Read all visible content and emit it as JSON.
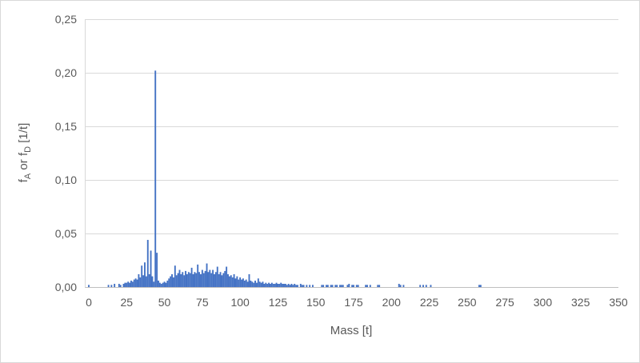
{
  "chart": {
    "x_axis": {
      "label": "Mass [t]",
      "ticks": [
        "0",
        "25",
        "50",
        "75",
        "100",
        "125",
        "150",
        "175",
        "200",
        "225",
        "250",
        "275",
        "300",
        "325",
        "350"
      ]
    },
    "y_axis": {
      "title_parts": [
        "f",
        "A",
        " or f",
        "D",
        " [1/t]"
      ],
      "ticks": [
        "0,25",
        "0,20",
        "0,15",
        "0,10",
        "0,05",
        "0,00"
      ]
    }
  },
  "colors": {
    "bar": "#4472C4",
    "gridline": "#D9D9D9",
    "axis_line": "#BFBFBF",
    "tick_text": "#595959",
    "frame_border": "#D9D9D9"
  },
  "chart_data": {
    "type": "bar",
    "xlabel": "Mass [t]",
    "ylabel": "f_A or f_D [1/t]",
    "xlim": [
      0,
      350
    ],
    "ylim": [
      0,
      0.25
    ],
    "x_tick_step": 25,
    "y_tick_step": 0.05,
    "grid": true,
    "legend": false,
    "decimal_separator": ",",
    "bars": [
      [
        0,
        0.002
      ],
      [
        13,
        0.002
      ],
      [
        15,
        0.002
      ],
      [
        17,
        0.003
      ],
      [
        20,
        0.003
      ],
      [
        21,
        0.002
      ],
      [
        23,
        0.003
      ],
      [
        24,
        0.004
      ],
      [
        25,
        0.004
      ],
      [
        26,
        0.005
      ],
      [
        27,
        0.004
      ],
      [
        28,
        0.006
      ],
      [
        29,
        0.005
      ],
      [
        30,
        0.007
      ],
      [
        31,
        0.008
      ],
      [
        32,
        0.007
      ],
      [
        33,
        0.012
      ],
      [
        34,
        0.009
      ],
      [
        35,
        0.02
      ],
      [
        36,
        0.011
      ],
      [
        37,
        0.023
      ],
      [
        38,
        0.01
      ],
      [
        39,
        0.044
      ],
      [
        40,
        0.012
      ],
      [
        41,
        0.034
      ],
      [
        42,
        0.01
      ],
      [
        43,
        0.005
      ],
      [
        44,
        0.202
      ],
      [
        45,
        0.032
      ],
      [
        46,
        0.006
      ],
      [
        47,
        0.004
      ],
      [
        48,
        0.003
      ],
      [
        49,
        0.004
      ],
      [
        50,
        0.005
      ],
      [
        51,
        0.004
      ],
      [
        52,
        0.006
      ],
      [
        53,
        0.008
      ],
      [
        54,
        0.01
      ],
      [
        55,
        0.012
      ],
      [
        56,
        0.009
      ],
      [
        57,
        0.02
      ],
      [
        58,
        0.011
      ],
      [
        59,
        0.013
      ],
      [
        60,
        0.016
      ],
      [
        61,
        0.012
      ],
      [
        62,
        0.014
      ],
      [
        63,
        0.011
      ],
      [
        64,
        0.015
      ],
      [
        65,
        0.012
      ],
      [
        66,
        0.014
      ],
      [
        67,
        0.013
      ],
      [
        68,
        0.018
      ],
      [
        69,
        0.012
      ],
      [
        70,
        0.014
      ],
      [
        71,
        0.013
      ],
      [
        72,
        0.021
      ],
      [
        73,
        0.014
      ],
      [
        74,
        0.012
      ],
      [
        75,
        0.016
      ],
      [
        76,
        0.013
      ],
      [
        77,
        0.015
      ],
      [
        78,
        0.022
      ],
      [
        79,
        0.014
      ],
      [
        80,
        0.016
      ],
      [
        81,
        0.013
      ],
      [
        82,
        0.016
      ],
      [
        83,
        0.012
      ],
      [
        84,
        0.014
      ],
      [
        85,
        0.019
      ],
      [
        86,
        0.012
      ],
      [
        87,
        0.014
      ],
      [
        88,
        0.011
      ],
      [
        89,
        0.013
      ],
      [
        90,
        0.015
      ],
      [
        91,
        0.019
      ],
      [
        92,
        0.012
      ],
      [
        93,
        0.01
      ],
      [
        94,
        0.011
      ],
      [
        95,
        0.009
      ],
      [
        96,
        0.012
      ],
      [
        97,
        0.008
      ],
      [
        98,
        0.01
      ],
      [
        99,
        0.007
      ],
      [
        100,
        0.009
      ],
      [
        101,
        0.007
      ],
      [
        102,
        0.008
      ],
      [
        103,
        0.006
      ],
      [
        104,
        0.007
      ],
      [
        105,
        0.005
      ],
      [
        106,
        0.012
      ],
      [
        107,
        0.006
      ],
      [
        108,
        0.005
      ],
      [
        109,
        0.004
      ],
      [
        110,
        0.006
      ],
      [
        111,
        0.004
      ],
      [
        112,
        0.008
      ],
      [
        113,
        0.005
      ],
      [
        114,
        0.004
      ],
      [
        115,
        0.005
      ],
      [
        116,
        0.003
      ],
      [
        117,
        0.004
      ],
      [
        118,
        0.003
      ],
      [
        119,
        0.004
      ],
      [
        120,
        0.003
      ],
      [
        121,
        0.004
      ],
      [
        122,
        0.003
      ],
      [
        123,
        0.003
      ],
      [
        124,
        0.004
      ],
      [
        125,
        0.003
      ],
      [
        126,
        0.003
      ],
      [
        127,
        0.004
      ],
      [
        128,
        0.003
      ],
      [
        129,
        0.003
      ],
      [
        130,
        0.003
      ],
      [
        131,
        0.002
      ],
      [
        132,
        0.003
      ],
      [
        133,
        0.002
      ],
      [
        134,
        0.003
      ],
      [
        135,
        0.002
      ],
      [
        136,
        0.003
      ],
      [
        137,
        0.002
      ],
      [
        138,
        0.002
      ],
      [
        140,
        0.003
      ],
      [
        141,
        0.002
      ],
      [
        142,
        0.002
      ],
      [
        144,
        0.002
      ],
      [
        146,
        0.002
      ],
      [
        148,
        0.002
      ],
      [
        154,
        0.002
      ],
      [
        155,
        0.002
      ],
      [
        157,
        0.002
      ],
      [
        158,
        0.002
      ],
      [
        160,
        0.002
      ],
      [
        161,
        0.002
      ],
      [
        163,
        0.002
      ],
      [
        164,
        0.002
      ],
      [
        166,
        0.002
      ],
      [
        167,
        0.002
      ],
      [
        168,
        0.002
      ],
      [
        171,
        0.002
      ],
      [
        172,
        0.003
      ],
      [
        174,
        0.002
      ],
      [
        175,
        0.002
      ],
      [
        177,
        0.002
      ],
      [
        178,
        0.002
      ],
      [
        183,
        0.002
      ],
      [
        184,
        0.002
      ],
      [
        186,
        0.002
      ],
      [
        191,
        0.002
      ],
      [
        192,
        0.002
      ],
      [
        205,
        0.003
      ],
      [
        206,
        0.002
      ],
      [
        208,
        0.002
      ],
      [
        219,
        0.002
      ],
      [
        221,
        0.002
      ],
      [
        223,
        0.002
      ],
      [
        226,
        0.002
      ],
      [
        258,
        0.002
      ],
      [
        259,
        0.002
      ]
    ]
  }
}
